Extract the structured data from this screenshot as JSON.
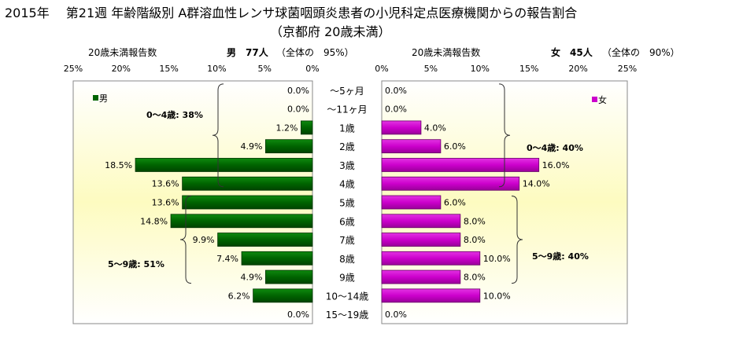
{
  "titles": {
    "line1": "2015年　 第21週 年齢階級別 A群溶血性レンサ球菌咽頭炎患者の小児科定点医療機関からの報告割合",
    "line2": "（京都府 20歳未満）"
  },
  "male_panel": {
    "header_label": "20歳未満報告数",
    "header_count": "男　77人",
    "header_share": "（全体の　95%）",
    "legend": "男",
    "bracket_04": "0～4歳: 38%",
    "bracket_59": "5～9歳: 51%"
  },
  "female_panel": {
    "header_label": "20歳未満報告数",
    "header_count": "女　45人",
    "header_share": "（全体の　90%）",
    "legend": "女",
    "bracket_04": "0～4歳: 40%",
    "bracket_59": "5～9歳: 40%"
  },
  "chart_data": {
    "type": "bar",
    "orientation": "horizontal-population-pyramid",
    "categories": [
      "～5ヶ月",
      "～11ヶ月",
      "1歳",
      "2歳",
      "3歳",
      "4歳",
      "5歳",
      "6歳",
      "7歳",
      "8歳",
      "9歳",
      "10～14歳",
      "15～19歳"
    ],
    "series": [
      {
        "name": "男",
        "values": [
          0.0,
          0.0,
          1.2,
          4.9,
          18.5,
          13.6,
          13.6,
          14.8,
          9.9,
          7.4,
          4.9,
          6.2,
          0.0
        ],
        "labels": [
          "0.0%",
          "0.0%",
          "1.2%",
          "4.9%",
          "18.5%",
          "13.6%",
          "13.6%",
          "14.8%",
          "9.9%",
          "7.4%",
          "4.9%",
          "6.2%",
          "0.0%"
        ],
        "color": "#006400"
      },
      {
        "name": "女",
        "values": [
          0.0,
          0.0,
          4.0,
          6.0,
          16.0,
          14.0,
          6.0,
          8.0,
          8.0,
          10.0,
          8.0,
          10.0,
          0.0
        ],
        "labels": [
          "0.0%",
          "0.0%",
          "4.0%",
          "6.0%",
          "16.0%",
          "14.0%",
          "6.0%",
          "8.0%",
          "8.0%",
          "10.0%",
          "8.0%",
          "10.0%",
          "0.0%"
        ],
        "color": "#CC00CC"
      }
    ],
    "axis_ticks": [
      "25%",
      "20%",
      "15%",
      "10%",
      "5%",
      "0%"
    ],
    "axis_ticks_right": [
      "0%",
      "5%",
      "10%",
      "15%",
      "20%",
      "25%"
    ],
    "xlim": [
      0,
      25
    ],
    "unit": "%",
    "plot_background": "yellow-gradient",
    "legend_placement_left": "top-left",
    "legend_placement_right": "top-right"
  }
}
